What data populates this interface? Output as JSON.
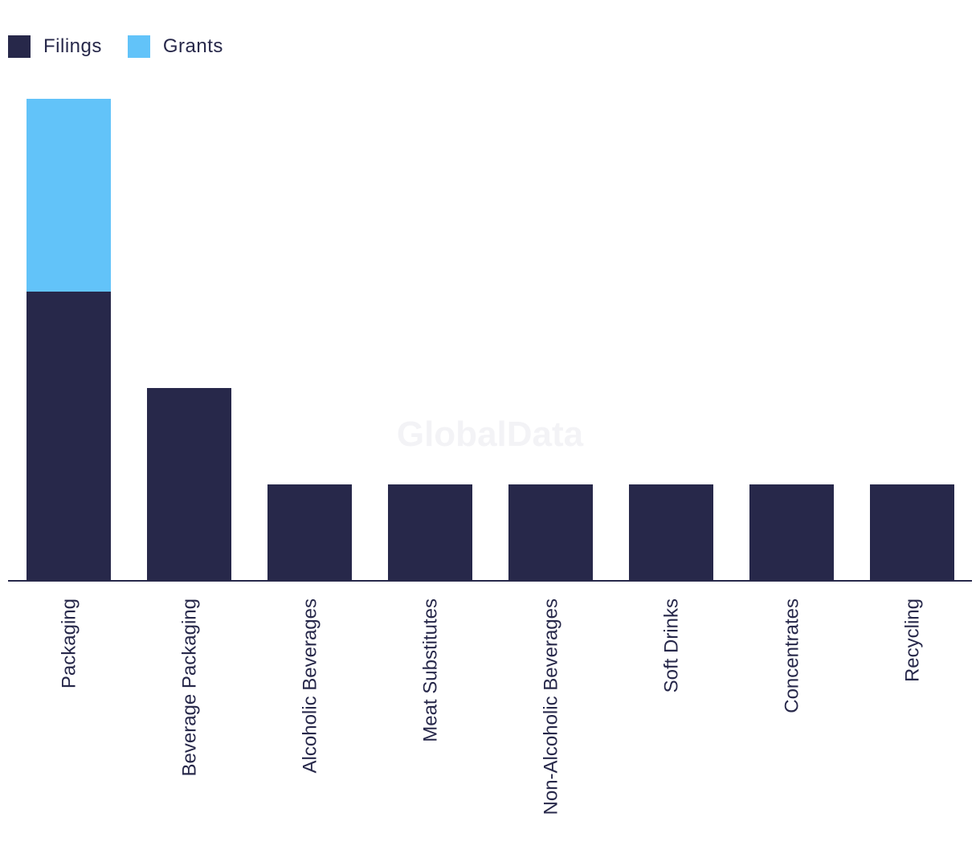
{
  "chart_data": {
    "type": "bar",
    "stacked": true,
    "categories": [
      "Packaging",
      "Beverage Packaging",
      "Alcoholic Beverages",
      "Meat Substitutes",
      "Non-Alcoholic Beverages",
      "Soft Drinks",
      "Concentrates",
      "Recycling"
    ],
    "series": [
      {
        "name": "Filings",
        "color": "#27284a",
        "values": [
          3,
          2,
          1,
          1,
          1,
          1,
          1,
          1
        ]
      },
      {
        "name": "Grants",
        "color": "#62c3f9",
        "values": [
          2,
          0,
          0,
          0,
          0,
          0,
          0,
          0
        ]
      }
    ],
    "ylim": [
      0,
      5
    ],
    "grid": false,
    "legend_position": "top-left",
    "watermark": "GlobalData"
  }
}
